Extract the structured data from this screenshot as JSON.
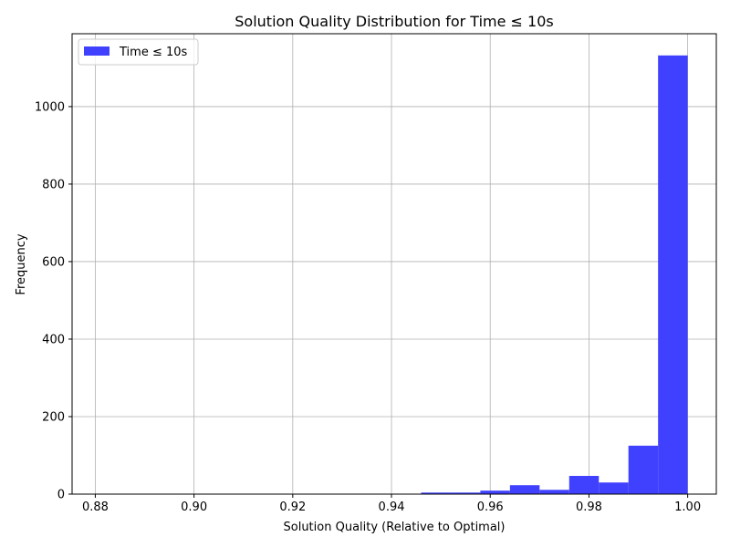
{
  "chart_data": {
    "type": "bar",
    "title": "Solution Quality Distribution for Time ≤ 10s",
    "xlabel": "Solution Quality (Relative to Optimal)",
    "ylabel": "Frequency",
    "xlim": [
      0.8753,
      1.0058
    ],
    "ylim": [
      0,
      1188
    ],
    "xticks": [
      0.88,
      0.9,
      0.92,
      0.94,
      0.96,
      0.98,
      1.0
    ],
    "xtick_labels": [
      "0.88",
      "0.90",
      "0.92",
      "0.94",
      "0.96",
      "0.98",
      "1.00"
    ],
    "yticks": [
      0,
      200,
      400,
      600,
      800,
      1000
    ],
    "ytick_labels": [
      "0",
      "200",
      "400",
      "600",
      "800",
      "1000"
    ],
    "grid": true,
    "legend": {
      "placement": "top-left",
      "entries": [
        "Time ≤ 10s"
      ]
    },
    "bar_color": "#4040ff",
    "series": [
      {
        "name": "Time ≤ 10s",
        "bin_edges": [
          0.88,
          0.886,
          0.892,
          0.898,
          0.904,
          0.91,
          0.916,
          0.922,
          0.928,
          0.934,
          0.94,
          0.946,
          0.952,
          0.958,
          0.964,
          0.97,
          0.976,
          0.982,
          0.988,
          0.994,
          1.0
        ],
        "values": [
          1,
          1,
          1,
          1,
          1,
          1,
          1,
          0,
          1,
          0,
          0,
          4,
          4,
          9,
          23,
          11,
          47,
          30,
          125,
          1132
        ]
      }
    ]
  }
}
